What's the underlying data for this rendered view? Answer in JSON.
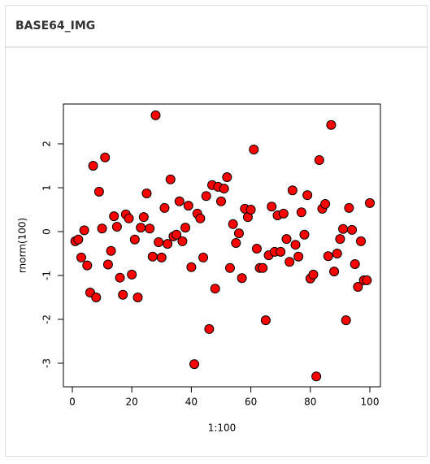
{
  "header": {
    "title": "BASE64_IMG"
  },
  "chart_data": {
    "type": "scatter",
    "x_label": "1:100",
    "y_label": "rnorm(100)",
    "color": "#ff0000",
    "edge_color": "#000000",
    "x": [
      1,
      2,
      3,
      4,
      5,
      6,
      7,
      8,
      9,
      10,
      11,
      12,
      13,
      14,
      15,
      16,
      17,
      18,
      19,
      20,
      21,
      22,
      23,
      24,
      25,
      26,
      27,
      28,
      29,
      30,
      31,
      32,
      33,
      34,
      35,
      36,
      37,
      38,
      39,
      40,
      41,
      42,
      43,
      44,
      45,
      46,
      47,
      48,
      49,
      50,
      51,
      52,
      53,
      54,
      55,
      56,
      57,
      58,
      59,
      60,
      61,
      62,
      63,
      64,
      65,
      66,
      67,
      68,
      69,
      70,
      71,
      72,
      73,
      74,
      75,
      76,
      77,
      78,
      79,
      80,
      81,
      82,
      83,
      84,
      85,
      86,
      87,
      88,
      89,
      90,
      91,
      92,
      93,
      94,
      95,
      96,
      97,
      98,
      99,
      100
    ],
    "values": [
      -0.22,
      -0.18,
      -0.59,
      0.03,
      -0.77,
      -1.39,
      1.5,
      -1.5,
      0.91,
      0.07,
      1.69,
      -0.75,
      -0.44,
      0.35,
      0.11,
      -1.05,
      -1.44,
      0.39,
      0.3,
      -0.98,
      -0.18,
      -1.5,
      0.09,
      0.33,
      0.87,
      0.07,
      -0.57,
      2.65,
      -0.24,
      -0.59,
      0.54,
      -0.28,
      1.19,
      -0.11,
      -0.07,
      0.69,
      -0.22,
      0.09,
      0.59,
      -0.81,
      -3.02,
      0.41,
      0.3,
      -0.59,
      0.81,
      -2.22,
      1.06,
      -1.3,
      1.02,
      0.69,
      0.98,
      1.24,
      -0.83,
      0.17,
      -0.26,
      -0.04,
      -1.06,
      0.52,
      0.33,
      0.5,
      1.87,
      -0.39,
      -0.83,
      -0.83,
      -2.02,
      -0.54,
      0.57,
      -0.46,
      0.37,
      -0.46,
      0.41,
      -0.17,
      -0.69,
      0.94,
      -0.3,
      -0.57,
      0.44,
      -0.07,
      0.83,
      -1.07,
      -0.98,
      -3.3,
      1.63,
      0.52,
      0.63,
      -0.56,
      2.43,
      -0.91,
      -0.5,
      -0.17,
      0.06,
      -2.02,
      0.54,
      0.04,
      -0.74,
      -1.26,
      -0.22,
      -1.11,
      -1.11,
      0.65
    ],
    "xlim": [
      -3.0,
      103.55
    ],
    "ylim": [
      -3.537,
      2.907
    ],
    "xticks": [
      0,
      20,
      40,
      60,
      80,
      100
    ],
    "yticks": [
      -3,
      -2,
      -1,
      0,
      1,
      2
    ]
  }
}
